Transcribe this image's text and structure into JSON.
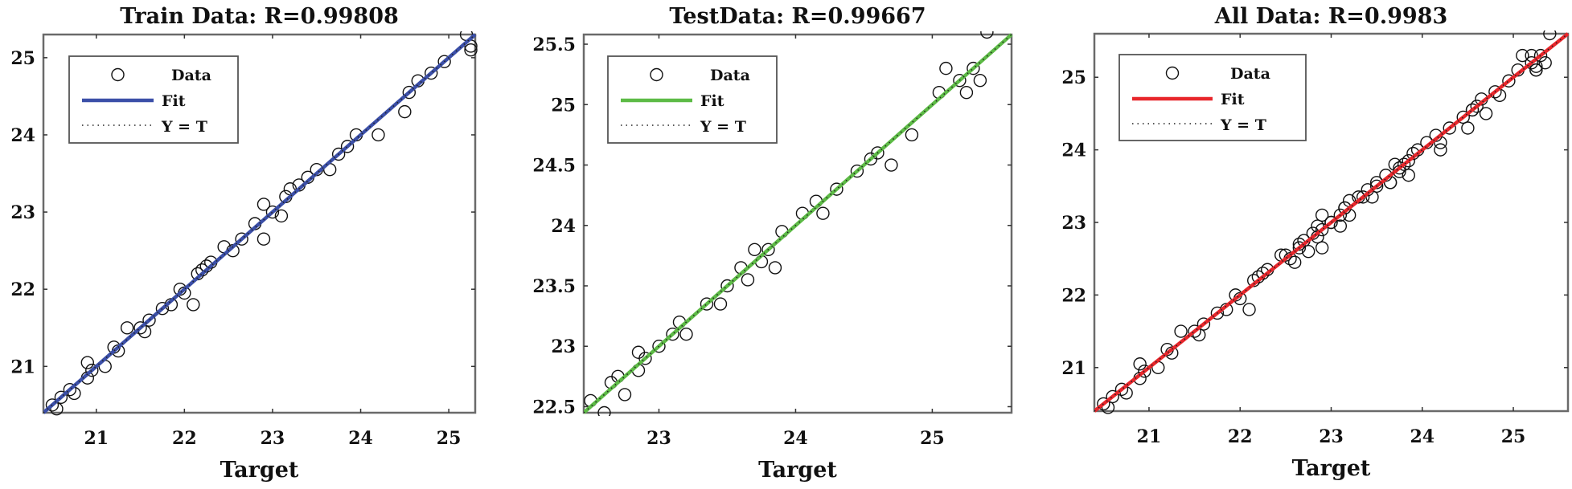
{
  "chart_data": [
    {
      "type": "scatter",
      "title": "Train Data: R=0.99808",
      "xlabel": "Target",
      "ylabel": "",
      "xlim": [
        20.4,
        25.3
      ],
      "ylim": [
        20.4,
        25.3
      ],
      "xticks": [
        "21",
        "22",
        "23",
        "24",
        "25"
      ],
      "yticks": [
        "21",
        "22",
        "23",
        "24",
        "25"
      ],
      "legend": {
        "placement": "top-left",
        "entries": [
          "Data",
          "Fit",
          "Y = T"
        ]
      },
      "fit_color": "#3b4fa8",
      "fit": {
        "slope": 1.0,
        "intercept": 0.0
      },
      "grid": false,
      "points": [
        [
          20.5,
          20.5
        ],
        [
          20.55,
          20.45
        ],
        [
          20.6,
          20.6
        ],
        [
          20.7,
          20.7
        ],
        [
          20.75,
          20.65
        ],
        [
          20.9,
          21.05
        ],
        [
          20.9,
          20.85
        ],
        [
          20.95,
          20.95
        ],
        [
          21.1,
          21.0
        ],
        [
          21.2,
          21.25
        ],
        [
          21.25,
          21.2
        ],
        [
          21.35,
          21.5
        ],
        [
          21.5,
          21.5
        ],
        [
          21.55,
          21.45
        ],
        [
          21.6,
          21.6
        ],
        [
          21.75,
          21.75
        ],
        [
          21.85,
          21.8
        ],
        [
          21.95,
          22.0
        ],
        [
          22.0,
          21.95
        ],
        [
          22.1,
          21.8
        ],
        [
          22.15,
          22.2
        ],
        [
          22.2,
          22.25
        ],
        [
          22.25,
          22.3
        ],
        [
          22.3,
          22.35
        ],
        [
          22.45,
          22.55
        ],
        [
          22.55,
          22.5
        ],
        [
          22.65,
          22.65
        ],
        [
          22.8,
          22.85
        ],
        [
          22.9,
          22.65
        ],
        [
          22.9,
          23.1
        ],
        [
          23.0,
          23.0
        ],
        [
          23.1,
          22.95
        ],
        [
          23.15,
          23.2
        ],
        [
          23.2,
          23.3
        ],
        [
          23.3,
          23.35
        ],
        [
          23.4,
          23.45
        ],
        [
          23.5,
          23.55
        ],
        [
          23.65,
          23.55
        ],
        [
          23.75,
          23.75
        ],
        [
          23.85,
          23.85
        ],
        [
          23.95,
          24.0
        ],
        [
          24.2,
          24.0
        ],
        [
          24.5,
          24.3
        ],
        [
          24.55,
          24.55
        ],
        [
          24.65,
          24.7
        ],
        [
          24.8,
          24.8
        ],
        [
          24.95,
          24.95
        ],
        [
          25.2,
          25.3
        ],
        [
          25.25,
          25.15
        ],
        [
          25.25,
          25.1
        ]
      ]
    },
    {
      "type": "scatter",
      "title": "TestData: R=0.99667",
      "xlabel": "Target",
      "ylabel": "",
      "xlim": [
        22.45,
        25.58
      ],
      "ylim": [
        22.45,
        25.58
      ],
      "xticks": [
        "23",
        "24",
        "25"
      ],
      "yticks": [
        "22.5",
        "23",
        "23.5",
        "24",
        "24.5",
        "25",
        "25.5"
      ],
      "legend": {
        "placement": "top-left",
        "entries": [
          "Data",
          "Fit",
          "Y = T"
        ]
      },
      "fit_color": "#5dbb46",
      "fit": {
        "slope": 1.0,
        "intercept": 0.0
      },
      "grid": false,
      "points": [
        [
          22.5,
          22.55
        ],
        [
          22.6,
          22.45
        ],
        [
          22.65,
          22.7
        ],
        [
          22.7,
          22.75
        ],
        [
          22.75,
          22.6
        ],
        [
          22.85,
          22.8
        ],
        [
          22.85,
          22.95
        ],
        [
          22.9,
          22.9
        ],
        [
          23.0,
          23.0
        ],
        [
          23.1,
          23.1
        ],
        [
          23.15,
          23.2
        ],
        [
          23.2,
          23.1
        ],
        [
          23.35,
          23.35
        ],
        [
          23.45,
          23.35
        ],
        [
          23.5,
          23.5
        ],
        [
          23.6,
          23.65
        ],
        [
          23.65,
          23.55
        ],
        [
          23.7,
          23.8
        ],
        [
          23.75,
          23.7
        ],
        [
          23.8,
          23.8
        ],
        [
          23.85,
          23.65
        ],
        [
          23.9,
          23.95
        ],
        [
          24.05,
          24.1
        ],
        [
          24.15,
          24.2
        ],
        [
          24.2,
          24.1
        ],
        [
          24.3,
          24.3
        ],
        [
          24.45,
          24.45
        ],
        [
          24.55,
          24.55
        ],
        [
          24.6,
          24.6
        ],
        [
          24.7,
          24.5
        ],
        [
          24.85,
          24.75
        ],
        [
          25.05,
          25.1
        ],
        [
          25.1,
          25.3
        ],
        [
          25.2,
          25.2
        ],
        [
          25.25,
          25.1
        ],
        [
          25.3,
          25.3
        ],
        [
          25.35,
          25.2
        ],
        [
          25.4,
          25.6
        ]
      ]
    },
    {
      "type": "scatter",
      "title": "All Data: R=0.9983",
      "xlabel": "Target",
      "ylabel": "",
      "xlim": [
        20.4,
        25.6
      ],
      "ylim": [
        20.4,
        25.6
      ],
      "xticks": [
        "21",
        "22",
        "23",
        "24",
        "25"
      ],
      "yticks": [
        "21",
        "22",
        "23",
        "24",
        "25"
      ],
      "legend": {
        "placement": "top-left",
        "entries": [
          "Data",
          "Fit",
          "Y = T"
        ]
      },
      "fit_color": "#e8262b",
      "fit": {
        "slope": 1.0,
        "intercept": 0.0
      },
      "grid": false,
      "points": [
        [
          20.5,
          20.5
        ],
        [
          20.55,
          20.45
        ],
        [
          20.6,
          20.6
        ],
        [
          20.7,
          20.7
        ],
        [
          20.75,
          20.65
        ],
        [
          20.9,
          21.05
        ],
        [
          20.9,
          20.85
        ],
        [
          20.95,
          20.95
        ],
        [
          21.1,
          21.0
        ],
        [
          21.2,
          21.25
        ],
        [
          21.25,
          21.2
        ],
        [
          21.35,
          21.5
        ],
        [
          21.5,
          21.5
        ],
        [
          21.55,
          21.45
        ],
        [
          21.6,
          21.6
        ],
        [
          21.75,
          21.75
        ],
        [
          21.85,
          21.8
        ],
        [
          21.95,
          22.0
        ],
        [
          22.0,
          21.95
        ],
        [
          22.1,
          21.8
        ],
        [
          22.15,
          22.2
        ],
        [
          22.2,
          22.25
        ],
        [
          22.25,
          22.3
        ],
        [
          22.3,
          22.35
        ],
        [
          22.45,
          22.55
        ],
        [
          22.55,
          22.5
        ],
        [
          22.65,
          22.65
        ],
        [
          22.8,
          22.85
        ],
        [
          22.9,
          22.65
        ],
        [
          22.9,
          23.1
        ],
        [
          23.0,
          23.0
        ],
        [
          23.1,
          22.95
        ],
        [
          23.15,
          23.2
        ],
        [
          23.2,
          23.3
        ],
        [
          23.3,
          23.35
        ],
        [
          23.4,
          23.45
        ],
        [
          23.5,
          23.55
        ],
        [
          23.65,
          23.55
        ],
        [
          23.75,
          23.75
        ],
        [
          23.85,
          23.85
        ],
        [
          23.95,
          24.0
        ],
        [
          24.2,
          24.0
        ],
        [
          24.5,
          24.3
        ],
        [
          24.55,
          24.55
        ],
        [
          24.65,
          24.7
        ],
        [
          24.8,
          24.8
        ],
        [
          24.95,
          24.95
        ],
        [
          25.2,
          25.3
        ],
        [
          25.25,
          25.15
        ],
        [
          25.25,
          25.1
        ],
        [
          22.5,
          22.55
        ],
        [
          22.6,
          22.45
        ],
        [
          22.65,
          22.7
        ],
        [
          22.7,
          22.75
        ],
        [
          22.75,
          22.6
        ],
        [
          22.85,
          22.8
        ],
        [
          22.85,
          22.95
        ],
        [
          22.9,
          22.9
        ],
        [
          23.0,
          23.0
        ],
        [
          23.1,
          23.1
        ],
        [
          23.15,
          23.2
        ],
        [
          23.2,
          23.1
        ],
        [
          23.35,
          23.35
        ],
        [
          23.45,
          23.35
        ],
        [
          23.5,
          23.5
        ],
        [
          23.6,
          23.65
        ],
        [
          23.65,
          23.55
        ],
        [
          23.7,
          23.8
        ],
        [
          23.75,
          23.7
        ],
        [
          23.8,
          23.8
        ],
        [
          23.85,
          23.65
        ],
        [
          23.9,
          23.95
        ],
        [
          24.05,
          24.1
        ],
        [
          24.15,
          24.2
        ],
        [
          24.2,
          24.1
        ],
        [
          24.3,
          24.3
        ],
        [
          24.45,
          24.45
        ],
        [
          24.55,
          24.55
        ],
        [
          24.6,
          24.6
        ],
        [
          24.7,
          24.5
        ],
        [
          24.85,
          24.75
        ],
        [
          25.05,
          25.1
        ],
        [
          25.1,
          25.3
        ],
        [
          25.2,
          25.2
        ],
        [
          25.25,
          25.1
        ],
        [
          25.3,
          25.3
        ],
        [
          25.35,
          25.2
        ],
        [
          25.4,
          25.6
        ]
      ]
    }
  ]
}
